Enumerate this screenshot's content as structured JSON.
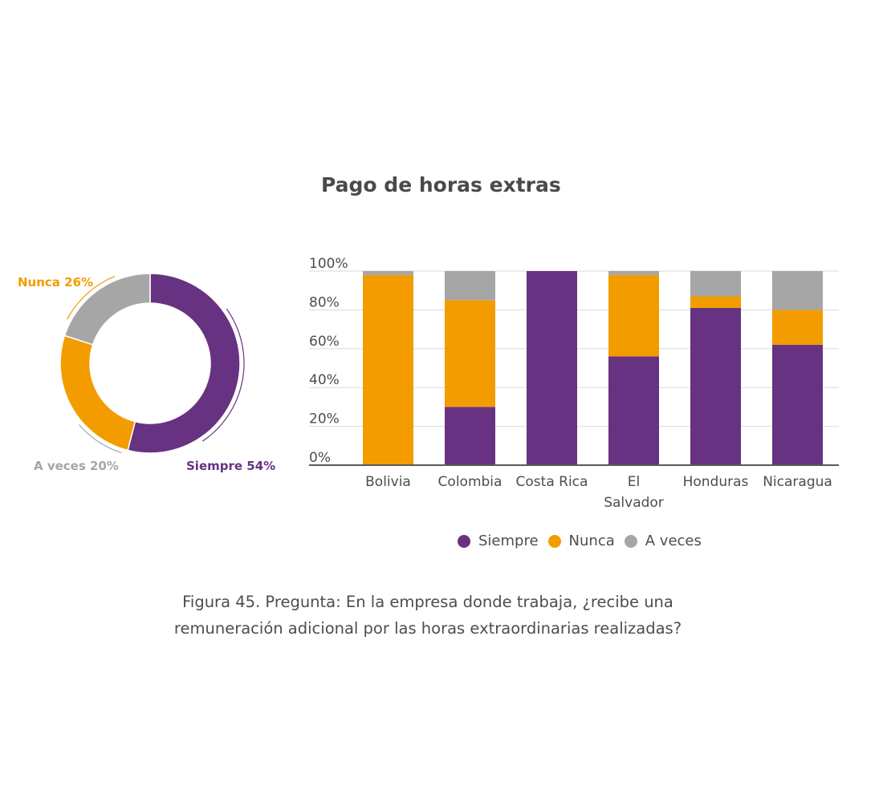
{
  "colors": {
    "siempre": "#673281",
    "nunca": "#f39c00",
    "aveces": "#a6a6a6",
    "grid": "#d9d9d9",
    "axis": "#595959",
    "text": "#4d4d4d"
  },
  "chart_data": [
    {
      "type": "pie",
      "style": "donut",
      "labels": [
        "Siempre 54%",
        "Nunca 26%",
        "A veces 20%"
      ],
      "series": [
        {
          "name": "Siempre",
          "value": 54
        },
        {
          "name": "Nunca",
          "value": 26
        },
        {
          "name": "A veces",
          "value": 20
        }
      ]
    },
    {
      "type": "bar",
      "stacked": true,
      "title": "Pago de horas extras",
      "categories": [
        "Bolivia",
        "Colombia",
        "Costa Rica",
        "El Salvador",
        "Honduras",
        "Nicaragua"
      ],
      "series": [
        {
          "name": "Siempre",
          "values": [
            0,
            30,
            100,
            56,
            81,
            62
          ]
        },
        {
          "name": "Nunca",
          "values": [
            98,
            55,
            0,
            42,
            6,
            18
          ]
        },
        {
          "name": "A veces",
          "values": [
            2,
            15,
            0,
            2,
            13,
            20
          ]
        }
      ],
      "ylim": [
        0,
        100
      ],
      "yticks": [
        "0%",
        "20%",
        "40%",
        "60%",
        "80%",
        "100%"
      ],
      "grid": true,
      "legend": "bottom"
    }
  ],
  "caption": {
    "line1": "Figura 45. Pregunta: En la empresa donde trabaja, ¿recibe una",
    "line2": "remuneración adicional por las horas extraordinarias realizadas?"
  }
}
